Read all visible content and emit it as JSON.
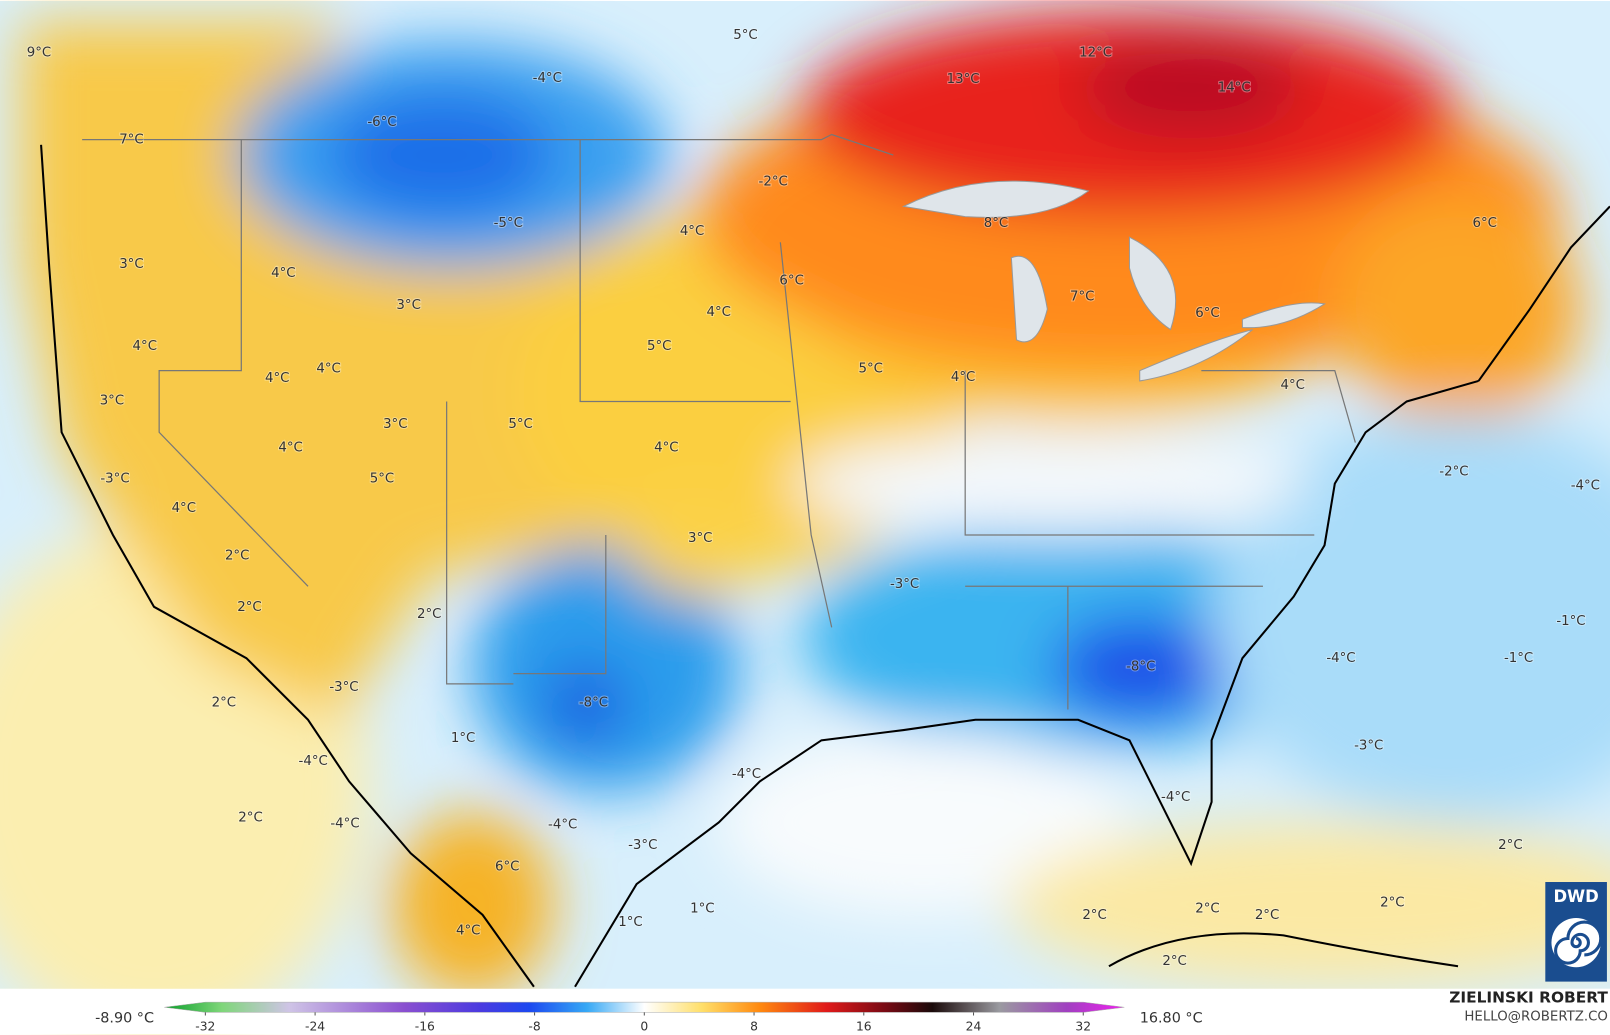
{
  "map_labels": [
    "9°C",
    "7°C",
    "5°C",
    "-4°C",
    "-6°C",
    "12°C",
    "13°C",
    "14°C",
    "-2°C",
    "-5°C",
    "4°C",
    "8°C",
    "6°C",
    "3°C",
    "4°C",
    "6°C",
    "3°C",
    "4°C",
    "7°C",
    "6°C",
    "4°C",
    "5°C",
    "4°C",
    "4°C",
    "5°C",
    "4°C",
    "4°C",
    "3°C",
    "3°C",
    "5°C",
    "4°C",
    "4°C",
    "-3°C",
    "5°C",
    "-2°C",
    "-4°C",
    "4°C",
    "3°C",
    "2°C",
    "-3°C",
    "2°C",
    "2°C",
    "-1°C",
    "-4°C",
    "-1°C",
    "-8°C",
    "-3°C",
    "2°C",
    "-8°C",
    "1°C",
    "-3°C",
    "-4°C",
    "-4°C",
    "-4°C",
    "2°C",
    "-4°C",
    "-4°C",
    "-3°C",
    "2°C",
    "6°C",
    "2°C",
    "2°C",
    "2°C",
    "2°C",
    "1°C",
    "1°C",
    "4°C",
    "2°C"
  ],
  "legend": {
    "min_label": "-8.90 °C",
    "max_label": "16.80 °C",
    "range": [
      -32,
      32
    ],
    "ticks": [
      -32,
      -24,
      -16,
      -8,
      0,
      8,
      16,
      24,
      32
    ]
  },
  "credit": {
    "name": "ZIELINSKI ROBERT",
    "email": "HELLO@ROBERTZ.CO"
  },
  "logo": "DWD"
}
